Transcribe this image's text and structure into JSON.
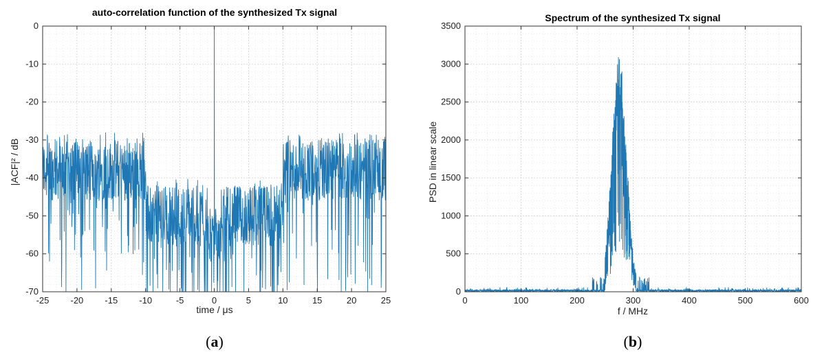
{
  "chart_data": [
    {
      "type": "line",
      "title": "auto-correlation function of the synthesized Tx signal",
      "xlabel": "time / μs",
      "ylabel": "|ACF|² / dB",
      "xlim": [
        -25,
        25
      ],
      "ylim": [
        -70,
        0
      ],
      "xticks": [
        -25,
        -20,
        -15,
        -10,
        -5,
        0,
        5,
        10,
        15,
        20,
        25
      ],
      "yticks": [
        0,
        -10,
        -20,
        -30,
        -40,
        -50,
        -60,
        -70
      ],
      "grid": true,
      "series": [
        {
          "color": "#1f77b4",
          "segments": [
            {
              "x_range": [
                -25,
                -10
              ],
              "mean": -38,
              "spread": 8,
              "peak": -28
            },
            {
              "x_range": [
                -10,
                -1
              ],
              "mean": -50,
              "spread": 8,
              "peak": -40
            },
            {
              "x_range": [
                -1,
                1
              ],
              "mean": -56,
              "spread": 6,
              "peak": -48
            },
            {
              "x_range": [
                1,
                10
              ],
              "mean": -50,
              "spread": 8,
              "peak": -40
            },
            {
              "x_range": [
                10,
                25
              ],
              "mean": -38,
              "spread": 8,
              "peak": -28
            }
          ],
          "main_lobe": {
            "x": 0,
            "y": 0
          }
        }
      ],
      "caption": {
        "open": "(",
        "letter": "a",
        "close": ")"
      }
    },
    {
      "type": "line",
      "title": "Spectrum of the synthesized Tx signal",
      "xlabel": "f / MHz",
      "ylabel": "PSD in linear scale",
      "xlim": [
        0,
        600
      ],
      "ylim": [
        0,
        3500
      ],
      "xticks": [
        0,
        100,
        200,
        300,
        400,
        500,
        600
      ],
      "yticks": [
        0,
        500,
        1000,
        1500,
        2000,
        2500,
        3000,
        3500
      ],
      "grid": true,
      "series": [
        {
          "color": "#1f77b4",
          "noise_floor": 30,
          "band": {
            "start": 250,
            "end": 305,
            "center": 275,
            "peak": 3150
          }
        }
      ],
      "caption": {
        "open": "(",
        "letter": "b",
        "close": ")"
      }
    }
  ]
}
